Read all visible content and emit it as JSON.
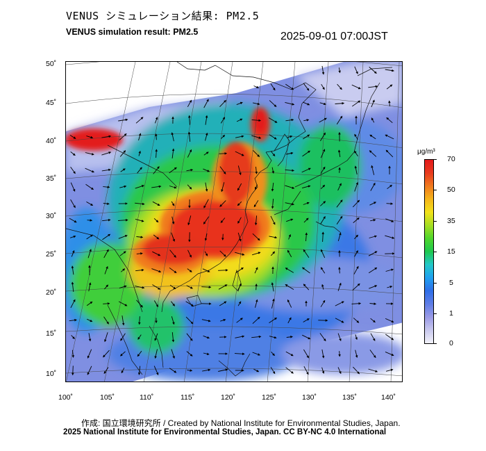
{
  "header": {
    "title_jp": "VENUS シミュレーション結果: PM2.5",
    "title_en": "VENUS simulation result: PM2.5",
    "timestamp": "2025-09-01 07:00JST"
  },
  "map": {
    "lat_labels": [
      "50˚",
      "45˚",
      "40˚",
      "35˚",
      "30˚",
      "25˚",
      "20˚",
      "15˚",
      "10˚"
    ],
    "lon_labels": [
      "100˚",
      "105˚",
      "110˚",
      "115˚",
      "120˚",
      "125˚",
      "130˚",
      "135˚",
      "140˚"
    ],
    "wind_vectors": "shown",
    "coastlines": "shown",
    "graticule": "shown"
  },
  "colorbar": {
    "unit": "μg/m³",
    "ticks": [
      "70",
      "50",
      "35",
      "15",
      "5",
      "1",
      "0"
    ],
    "colors": [
      "#f2f2f8",
      "#c9c9ee",
      "#9a9ae6",
      "#5f7de6",
      "#2f6ee8",
      "#1fa0f0",
      "#23c8c8",
      "#1ec84f",
      "#4fd62c",
      "#a6de22",
      "#f2e21a",
      "#f5b51a",
      "#f07a1e",
      "#e83a1e",
      "#e31a1c"
    ]
  },
  "credits": {
    "line1": "作成: 国立環境研究所 / Created by National Institute for Environmental Studies, Japan.",
    "line2": "2025 National Institute for Environmental Studies, Japan. CC BY-NC 4.0 International"
  }
}
